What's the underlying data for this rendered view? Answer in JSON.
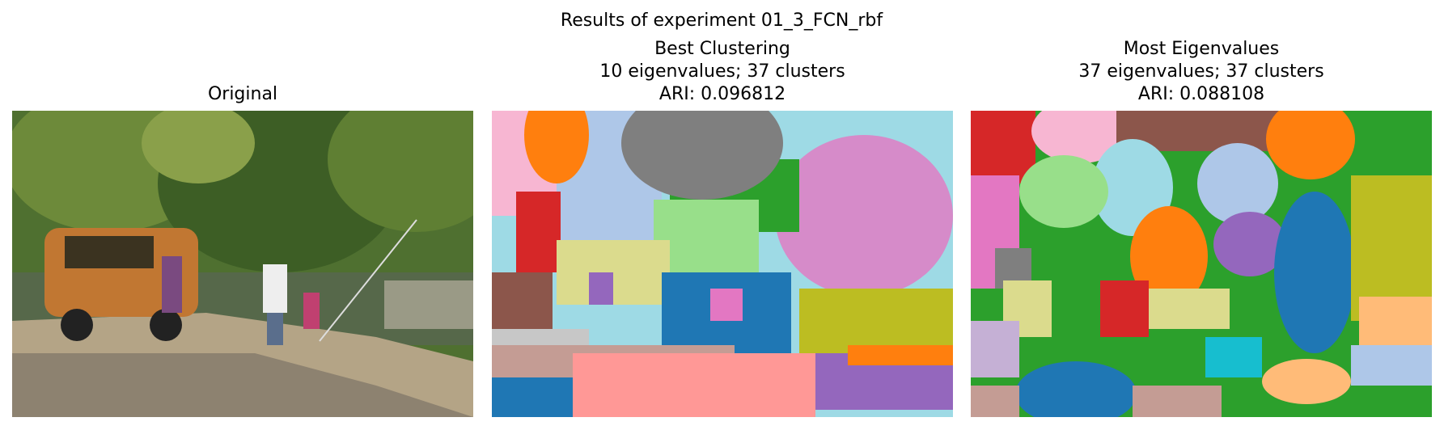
{
  "title": "Results of experiment 01_3_FCN_rbf",
  "panels": [
    {
      "title_lines": [
        "Original"
      ]
    },
    {
      "title_lines": [
        "Best Clustering",
        "10 eigenvalues; 37 clusters",
        "ARI: 0.096812"
      ]
    },
    {
      "title_lines": [
        "Most Eigenvalues",
        "37 eigenvalues; 37 clusters",
        "ARI: 0.088108"
      ]
    }
  ]
}
